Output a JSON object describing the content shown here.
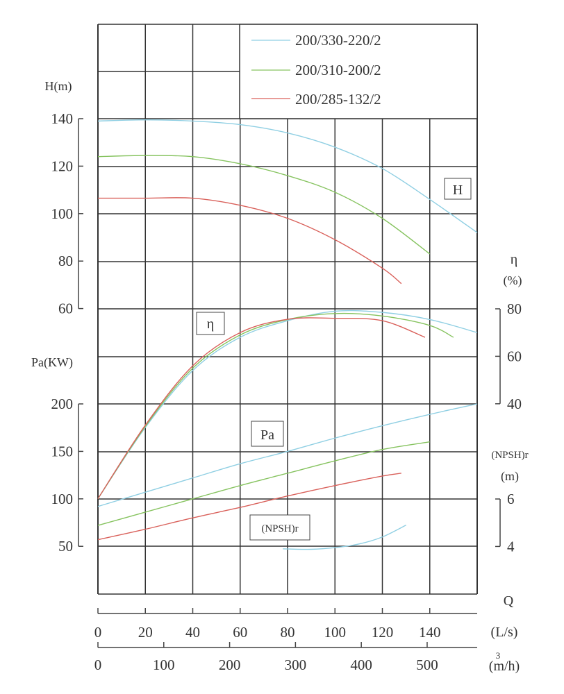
{
  "chart_data": {
    "type": "line",
    "grid": true,
    "legend_placement": "top-right",
    "x": {
      "label": "Q",
      "unit_primary": "(L/s)",
      "ticks_primary": [
        0,
        20,
        40,
        60,
        80,
        100,
        120,
        140
      ],
      "unit_secondary": "(m³/h)",
      "unit_secondary_base": "(m/h)",
      "unit_secondary_sup": "3",
      "ticks_secondary": [
        0,
        100,
        200,
        300,
        400,
        500
      ],
      "range": [
        0,
        160
      ]
    },
    "axes": {
      "H": {
        "label": "H(m)",
        "ticks": [
          140,
          120,
          100,
          80,
          60
        ],
        "range": [
          40,
          180
        ],
        "box_label": "H"
      },
      "Pa": {
        "label": "Pa(KW)",
        "ticks": [
          200,
          150,
          100,
          50
        ],
        "range": [
          0,
          250
        ],
        "box_label": "Pa"
      },
      "eta": {
        "label": "η",
        "unit": "(%)",
        "ticks": [
          80,
          60,
          40
        ],
        "range": [
          0,
          80
        ],
        "box_label": "η"
      },
      "npsh": {
        "label": "(NPSH)r",
        "unit": "(m)",
        "ticks": [
          6,
          4
        ],
        "range": [
          4,
          6
        ],
        "box_label": "(NPSH)r"
      }
    },
    "series": [
      {
        "name": "200/330-220/2",
        "color": "#8fcfe3",
        "H": {
          "x": [
            0,
            20,
            40,
            60,
            80,
            100,
            120,
            140,
            160
          ],
          "y": [
            139,
            139.5,
            139,
            137.5,
            134,
            128,
            119,
            106,
            92
          ]
        },
        "eta": {
          "x": [
            0,
            20,
            40,
            60,
            80,
            100,
            120,
            140,
            160
          ],
          "y": [
            0,
            30,
            54,
            68,
            75,
            79,
            78.5,
            75.5,
            70
          ]
        },
        "Pa": {
          "x": [
            0,
            20,
            40,
            60,
            80,
            100,
            120,
            140,
            160
          ],
          "y": [
            92,
            107,
            122,
            137,
            150,
            164,
            177,
            189,
            200
          ]
        },
        "npsh": {
          "x": [
            78,
            90,
            100,
            110,
            120,
            130
          ],
          "y": [
            3.9,
            3.88,
            3.95,
            4.1,
            4.4,
            4.9
          ]
        }
      },
      {
        "name": "200/310-200/2",
        "color": "#86c35f",
        "H": {
          "x": [
            0,
            20,
            40,
            60,
            80,
            100,
            120,
            140
          ],
          "y": [
            124,
            124.5,
            124,
            121,
            116,
            109,
            98,
            83
          ]
        },
        "eta": {
          "x": [
            0,
            20,
            40,
            60,
            80,
            100,
            120,
            140,
            150
          ],
          "y": [
            0,
            30.5,
            55,
            69,
            75.5,
            78,
            77,
            73,
            68
          ]
        },
        "Pa": {
          "x": [
            0,
            20,
            40,
            60,
            80,
            100,
            120,
            140
          ],
          "y": [
            72,
            86,
            100,
            114,
            127,
            140,
            152,
            160
          ]
        }
      },
      {
        "name": "200/285-132/2",
        "color": "#d9605a",
        "H": {
          "x": [
            0,
            20,
            40,
            60,
            80,
            100,
            120,
            128
          ],
          "y": [
            106.5,
            106.5,
            106.5,
            103.5,
            98,
            89,
            77,
            70.5
          ]
        },
        "eta": {
          "x": [
            0,
            20,
            40,
            60,
            80,
            100,
            120,
            138
          ],
          "y": [
            0,
            31,
            56,
            70,
            75.6,
            76,
            75,
            68
          ]
        },
        "Pa": {
          "x": [
            0,
            20,
            40,
            60,
            80,
            100,
            120,
            128
          ],
          "y": [
            57,
            68,
            80,
            91,
            103,
            114,
            124,
            127
          ]
        }
      }
    ]
  }
}
